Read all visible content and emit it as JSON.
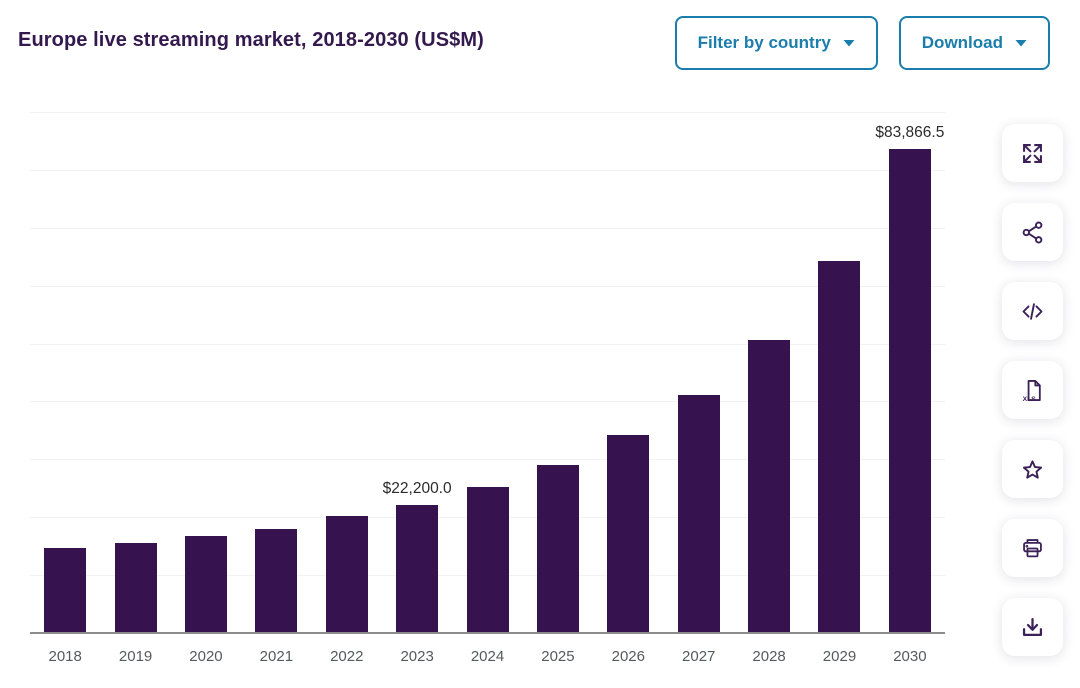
{
  "header": {
    "title": "Europe live streaming market, 2018-2030 (US$M)",
    "filter_button_label": "Filter by country",
    "download_button_label": "Download"
  },
  "toolbar": {
    "icons": [
      {
        "name": "expand-icon"
      },
      {
        "name": "share-icon"
      },
      {
        "name": "embed-code-icon"
      },
      {
        "name": "xls-download-icon",
        "label": "XLS"
      },
      {
        "name": "favorite-star-icon"
      },
      {
        "name": "print-icon"
      },
      {
        "name": "download-image-icon"
      }
    ],
    "xls_label": "XLS"
  },
  "colors": {
    "accent_teal": "#1b7dab",
    "bar_purple": "#36134e",
    "title_purple": "#33194e",
    "icon_purple": "#3b2157",
    "axis_line_gray": "#8c8c8c",
    "axis_label_gray": "#56595d",
    "gridline_gray": "#f2f2f3",
    "data_label_dark": "#2b2b2b"
  },
  "chart_data": {
    "type": "bar",
    "title": "Europe live streaming market, 2018-2030 (US$M)",
    "categories": [
      "2018",
      "2019",
      "2020",
      "2021",
      "2022",
      "2023",
      "2024",
      "2025",
      "2026",
      "2027",
      "2028",
      "2029",
      "2030"
    ],
    "values": [
      14900,
      15800,
      16850,
      18200,
      20300,
      22200,
      25330,
      29150,
      34350,
      41300,
      50830,
      64370,
      83866.5
    ],
    "point_labels": [
      "",
      "",
      "",
      "",
      "",
      "$22,200.0",
      "",
      "",
      "",
      "",
      "",
      "",
      "$83,866.5"
    ],
    "labeled_points": {
      "2023": "$22,200.0",
      "2030": "$83,866.5"
    },
    "xlabel": "",
    "ylabel": "",
    "ylim": [
      0,
      90000
    ],
    "ytick_interval": 10000,
    "grid": "horizontal-faint",
    "y_axis_labels_visible": false,
    "legend": "none",
    "bar_color": "#36134e"
  }
}
